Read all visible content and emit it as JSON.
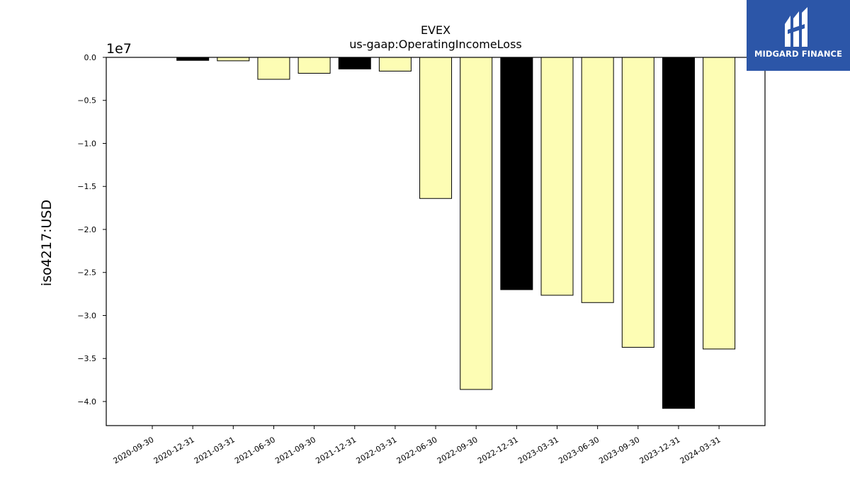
{
  "brand": {
    "name": "MIDGARD FINANCE",
    "logo_icon": "midgard-logo-icon",
    "bg_color": "#2c56a8"
  },
  "chart_data": {
    "type": "bar",
    "title": "EVEX",
    "subtitle": "us-gaap:OperatingIncomeLoss",
    "ylabel": "iso4217:USD",
    "xlabel": "",
    "offset_label": "1e7",
    "y_scale": 10000000,
    "ylim": [
      -4.28,
      0.0
    ],
    "yticks": [
      0.0,
      -0.5,
      -1.0,
      -1.5,
      -2.0,
      -2.5,
      -3.0,
      -3.5,
      -4.0
    ],
    "ytick_labels": [
      "0.0",
      "−0.5",
      "−1.0",
      "−1.5",
      "−2.0",
      "−2.5",
      "−3.0",
      "−3.5",
      "−4.0"
    ],
    "categories": [
      "2020-09-30",
      "2020-12-31",
      "2021-03-31",
      "2021-06-30",
      "2021-09-30",
      "2021-12-31",
      "2022-03-31",
      "2022-06-30",
      "2022-09-30",
      "2022-12-31",
      "2023-03-31",
      "2023-06-30",
      "2023-09-30",
      "2023-12-31",
      "2024-03-31"
    ],
    "values": [
      0,
      -350000,
      -400000,
      -2550000,
      -1850000,
      -1350000,
      -1600000,
      -16400000,
      -38600000,
      -27000000,
      -27650000,
      -28500000,
      -33700000,
      -40800000,
      -33900000
    ],
    "colors": [
      "#fdfdb4",
      "#000000",
      "#fdfdb4",
      "#fdfdb4",
      "#fdfdb4",
      "#000000",
      "#fdfdb4",
      "#fdfdb4",
      "#fdfdb4",
      "#000000",
      "#fdfdb4",
      "#fdfdb4",
      "#fdfdb4",
      "#000000",
      "#fdfdb4"
    ],
    "grid": false,
    "legend": "none"
  }
}
